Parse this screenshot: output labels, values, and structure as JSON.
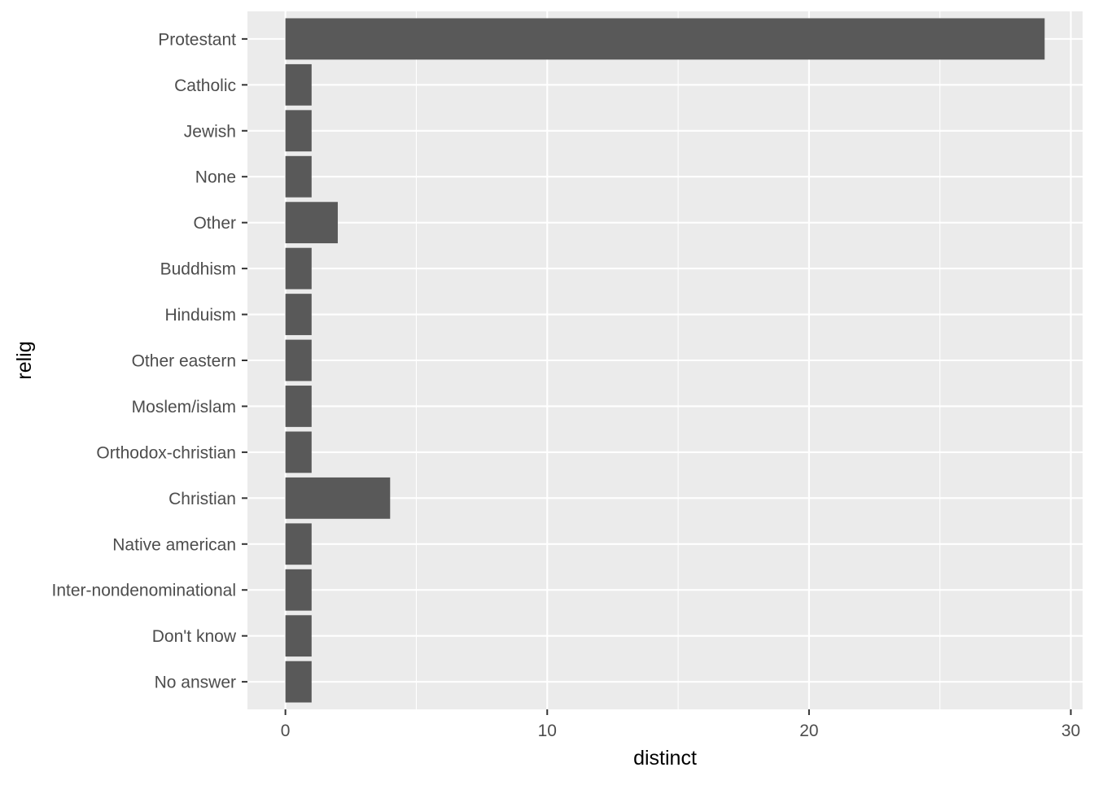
{
  "chart_data": {
    "type": "bar",
    "orientation": "horizontal",
    "categories": [
      "Protestant",
      "Catholic",
      "Jewish",
      "None",
      "Other",
      "Buddhism",
      "Hinduism",
      "Other eastern",
      "Moslem/islam",
      "Orthodox-christian",
      "Christian",
      "Native american",
      "Inter-nondenominational",
      "Don't know",
      "No answer"
    ],
    "values": [
      29,
      1,
      1,
      1,
      2,
      1,
      1,
      1,
      1,
      1,
      4,
      1,
      1,
      1,
      1
    ],
    "xlabel": "distinct",
    "ylabel": "relig",
    "xlim": [
      -1.45,
      30.45
    ],
    "xticks": [
      0,
      10,
      20,
      30
    ],
    "grid": true,
    "legend": "none",
    "colors": {
      "bar": "#595959",
      "panel": "#ebebeb",
      "grid": "#ffffff"
    }
  }
}
